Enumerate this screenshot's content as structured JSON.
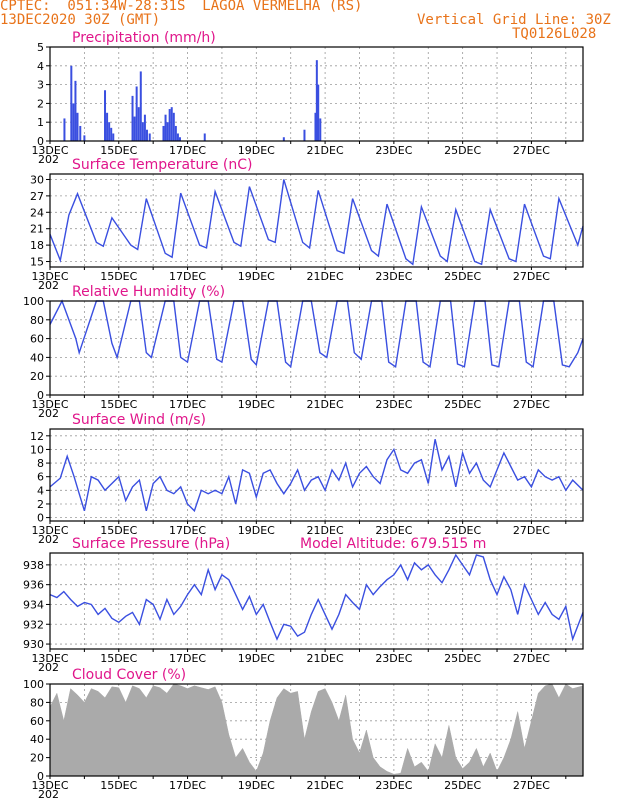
{
  "header": {
    "line1": "CPTEC:  051:34W-28:31S  LAGOA VERMELHA (RS)",
    "line2_left": "13DEC2020 30Z (GMT)",
    "line2_right": "Vertical Grid Line: 30Z",
    "line3_right": "TQ0126L028"
  },
  "colors": {
    "header": "#e8731a",
    "title": "#e0168b",
    "line": "#3a4fe0",
    "cloud": "#aaaaaa"
  },
  "x_tick_labels": [
    "13DEC",
    "15DEC",
    "17DEC",
    "19DEC",
    "21DEC",
    "23DEC",
    "25DEC",
    "27DEC"
  ],
  "x_cut_label": "202",
  "model_altitude": "Model Altitude: 679.515  m",
  "chart_data": [
    {
      "type": "bar",
      "title": "Precipitation  (mm/h)",
      "xlim": [
        0,
        15.5
      ],
      "ylim": [
        0,
        5
      ],
      "yticks": [
        0,
        1,
        2,
        3,
        4,
        5
      ],
      "x": [
        0.42,
        0.62,
        0.68,
        0.74,
        0.8,
        0.88,
        1.0,
        1.6,
        1.66,
        1.72,
        1.78,
        1.84,
        2.4,
        2.46,
        2.52,
        2.58,
        2.64,
        2.7,
        2.76,
        2.82,
        2.9,
        3.3,
        3.36,
        3.42,
        3.48,
        3.54,
        3.6,
        3.66,
        3.72,
        3.78,
        4.5,
        6.8,
        7.4,
        7.72,
        7.76,
        7.8,
        7.86
      ],
      "values": [
        1.2,
        4.0,
        2.0,
        3.2,
        1.5,
        0.8,
        0.3,
        2.7,
        1.5,
        1.0,
        0.7,
        0.4,
        2.4,
        1.3,
        2.9,
        1.8,
        3.7,
        1.0,
        1.4,
        0.6,
        0.4,
        0.8,
        1.4,
        1.0,
        1.7,
        1.8,
        1.5,
        0.8,
        0.4,
        0.2,
        0.4,
        0.2,
        0.6,
        1.5,
        4.3,
        3.0,
        1.2
      ]
    },
    {
      "type": "line",
      "title": "Surface Temperature  (nC)",
      "xlim": [
        0,
        15.5
      ],
      "ylim": [
        14,
        31
      ],
      "yticks": [
        15,
        18,
        21,
        24,
        27,
        30
      ],
      "x": [
        0.0,
        0.3,
        0.55,
        0.8,
        1.35,
        1.55,
        1.8,
        2.35,
        2.55,
        2.8,
        3.35,
        3.55,
        3.8,
        4.35,
        4.55,
        4.8,
        5.35,
        5.55,
        5.8,
        6.35,
        6.55,
        6.8,
        7.35,
        7.55,
        7.8,
        8.35,
        8.55,
        8.8,
        9.35,
        9.55,
        9.8,
        10.35,
        10.55,
        10.8,
        11.35,
        11.55,
        11.8,
        12.35,
        12.55,
        12.8,
        13.35,
        13.55,
        13.8,
        14.35,
        14.55,
        14.8,
        15.35,
        15.5
      ],
      "values": [
        20.0,
        15.2,
        23.5,
        27.4,
        18.5,
        17.8,
        23.0,
        18.0,
        17.2,
        26.5,
        16.5,
        15.8,
        27.5,
        18.0,
        17.5,
        27.8,
        18.5,
        17.8,
        28.7,
        19.0,
        18.5,
        30.0,
        18.5,
        17.5,
        28.0,
        17.0,
        16.5,
        26.5,
        17.0,
        16.0,
        25.5,
        15.5,
        14.5,
        25.0,
        16.0,
        15.0,
        24.5,
        15.0,
        14.5,
        24.5,
        15.5,
        15.0,
        25.5,
        16.0,
        15.5,
        26.5,
        18.0,
        21.5
      ]
    },
    {
      "type": "line",
      "title": "Relative Humidity  (%)",
      "xlim": [
        0,
        15.5
      ],
      "ylim": [
        0,
        100
      ],
      "yticks": [
        0,
        20,
        40,
        60,
        80,
        100
      ],
      "x": [
        0.0,
        0.35,
        0.75,
        0.85,
        1.35,
        1.55,
        1.8,
        1.95,
        2.35,
        2.6,
        2.8,
        2.95,
        3.35,
        3.6,
        3.8,
        4.0,
        4.35,
        4.6,
        4.85,
        5.0,
        5.35,
        5.6,
        5.85,
        6.0,
        6.35,
        6.6,
        6.85,
        7.0,
        7.35,
        7.6,
        7.85,
        8.05,
        8.35,
        8.65,
        8.85,
        9.05,
        9.35,
        9.65,
        9.85,
        10.05,
        10.35,
        10.65,
        10.85,
        11.05,
        11.35,
        11.65,
        11.85,
        12.05,
        12.35,
        12.65,
        12.85,
        13.05,
        13.35,
        13.65,
        13.85,
        14.05,
        14.35,
        14.65,
        14.9,
        15.1,
        15.35,
        15.5
      ],
      "values": [
        75,
        100,
        60,
        45,
        100,
        100,
        55,
        40,
        100,
        100,
        45,
        40,
        100,
        100,
        40,
        35,
        100,
        100,
        38,
        35,
        100,
        100,
        38,
        32,
        100,
        100,
        35,
        30,
        100,
        100,
        45,
        40,
        100,
        100,
        45,
        38,
        100,
        100,
        35,
        30,
        100,
        100,
        35,
        30,
        100,
        100,
        33,
        30,
        100,
        100,
        32,
        30,
        100,
        100,
        35,
        30,
        100,
        100,
        32,
        30,
        45,
        60
      ]
    },
    {
      "type": "line",
      "title": "Surface  Wind  (m/s)",
      "xlim": [
        0,
        15.5
      ],
      "ylim": [
        -0.5,
        13
      ],
      "yticks": [
        0,
        2,
        4,
        6,
        8,
        10,
        12
      ],
      "x": [
        0.0,
        0.3,
        0.5,
        0.7,
        0.85,
        1.0,
        1.2,
        1.4,
        1.6,
        1.8,
        2.0,
        2.2,
        2.4,
        2.6,
        2.8,
        3.0,
        3.2,
        3.4,
        3.6,
        3.8,
        4.0,
        4.2,
        4.4,
        4.6,
        4.8,
        5.0,
        5.2,
        5.4,
        5.6,
        5.8,
        6.0,
        6.2,
        6.4,
        6.6,
        6.8,
        7.0,
        7.2,
        7.4,
        7.6,
        7.8,
        8.0,
        8.2,
        8.4,
        8.6,
        8.8,
        9.0,
        9.2,
        9.4,
        9.6,
        9.8,
        10.0,
        10.2,
        10.4,
        10.6,
        10.8,
        11.0,
        11.2,
        11.4,
        11.6,
        11.8,
        12.0,
        12.2,
        12.4,
        12.6,
        12.8,
        13.0,
        13.2,
        13.4,
        13.6,
        13.8,
        14.0,
        14.2,
        14.4,
        14.6,
        14.8,
        15.0,
        15.2,
        15.5
      ],
      "values": [
        4.5,
        5.8,
        9.0,
        6.0,
        3.5,
        1.0,
        6.0,
        5.5,
        4.0,
        5.0,
        6.0,
        2.5,
        4.5,
        5.5,
        1.0,
        5.0,
        6.0,
        4.0,
        3.5,
        4.5,
        2.0,
        1.0,
        4.0,
        3.5,
        4.0,
        3.5,
        6.0,
        2.0,
        7.0,
        6.5,
        3.0,
        6.5,
        7.0,
        5.0,
        3.5,
        5.0,
        7.0,
        4.0,
        5.5,
        6.0,
        4.0,
        7.0,
        5.5,
        8.0,
        4.5,
        6.5,
        7.5,
        6.0,
        5.0,
        8.5,
        10.0,
        7.0,
        6.5,
        8.0,
        8.5,
        5.0,
        11.5,
        7.0,
        9.0,
        4.5,
        9.5,
        6.5,
        8.0,
        5.5,
        4.5,
        7.0,
        9.5,
        7.5,
        5.5,
        6.0,
        4.5,
        7.0,
        6.0,
        5.5,
        6.0,
        4.0,
        5.5,
        4.0
      ]
    },
    {
      "type": "line",
      "title": "Surface Pressure (hPa)",
      "xlim": [
        0,
        15.5
      ],
      "ylim": [
        929.5,
        939.2
      ],
      "yticks": [
        930,
        932,
        934,
        936,
        938
      ],
      "x": [
        0.0,
        0.2,
        0.4,
        0.6,
        0.8,
        1.0,
        1.2,
        1.4,
        1.6,
        1.8,
        2.0,
        2.2,
        2.4,
        2.6,
        2.8,
        3.0,
        3.2,
        3.4,
        3.6,
        3.8,
        4.0,
        4.2,
        4.4,
        4.6,
        4.8,
        5.0,
        5.2,
        5.4,
        5.6,
        5.8,
        6.0,
        6.2,
        6.4,
        6.6,
        6.8,
        7.0,
        7.2,
        7.4,
        7.6,
        7.8,
        8.0,
        8.2,
        8.4,
        8.6,
        8.8,
        9.0,
        9.2,
        9.4,
        9.6,
        9.8,
        10.0,
        10.2,
        10.4,
        10.6,
        10.8,
        11.0,
        11.2,
        11.4,
        11.6,
        11.8,
        12.0,
        12.2,
        12.4,
        12.6,
        12.8,
        13.0,
        13.2,
        13.4,
        13.6,
        13.8,
        14.0,
        14.2,
        14.4,
        14.6,
        14.8,
        15.0,
        15.2,
        15.5
      ],
      "values": [
        935.0,
        934.7,
        935.3,
        934.5,
        933.8,
        934.2,
        934.0,
        933.0,
        933.6,
        932.6,
        932.2,
        932.8,
        933.2,
        932.0,
        934.5,
        934.0,
        932.5,
        934.5,
        933.0,
        933.8,
        935.0,
        936.0,
        935.0,
        937.5,
        935.5,
        937.0,
        936.5,
        935.0,
        933.5,
        934.8,
        933.0,
        934.0,
        932.2,
        930.5,
        932.0,
        931.8,
        930.8,
        931.2,
        933.0,
        934.5,
        933.0,
        931.5,
        933.0,
        935.0,
        934.2,
        933.5,
        936.0,
        935.0,
        935.8,
        936.5,
        937.0,
        938.0,
        936.5,
        938.2,
        937.5,
        938.0,
        937.0,
        936.2,
        937.5,
        939.0,
        938.0,
        937.0,
        939.0,
        938.8,
        936.5,
        935.0,
        936.8,
        935.5,
        933.0,
        936.0,
        934.5,
        933.0,
        934.2,
        933.0,
        932.5,
        933.8,
        930.5,
        933.2
      ]
    },
    {
      "type": "area",
      "title": "Cloud  Cover  (%)",
      "xlim": [
        0,
        15.5
      ],
      "ylim": [
        0,
        100
      ],
      "yticks": [
        0,
        20,
        40,
        60,
        80,
        100
      ],
      "x": [
        0.0,
        0.2,
        0.4,
        0.6,
        0.8,
        1.0,
        1.2,
        1.4,
        1.6,
        1.8,
        2.0,
        2.2,
        2.4,
        2.6,
        2.8,
        3.0,
        3.2,
        3.4,
        3.6,
        3.8,
        4.0,
        4.2,
        4.4,
        4.6,
        4.8,
        5.0,
        5.2,
        5.4,
        5.6,
        5.8,
        6.0,
        6.2,
        6.4,
        6.6,
        6.8,
        7.0,
        7.2,
        7.4,
        7.6,
        7.8,
        8.0,
        8.2,
        8.4,
        8.6,
        8.8,
        9.0,
        9.2,
        9.4,
        9.6,
        9.8,
        10.0,
        10.2,
        10.4,
        10.6,
        10.8,
        11.0,
        11.2,
        11.4,
        11.6,
        11.8,
        12.0,
        12.2,
        12.4,
        12.6,
        12.8,
        13.0,
        13.2,
        13.4,
        13.6,
        13.8,
        14.0,
        14.2,
        14.4,
        14.6,
        14.8,
        15.0,
        15.2,
        15.5
      ],
      "values": [
        75,
        90,
        60,
        95,
        88,
        80,
        95,
        92,
        85,
        97,
        96,
        80,
        98,
        95,
        85,
        98,
        96,
        90,
        100,
        98,
        95,
        98,
        96,
        94,
        97,
        80,
        45,
        20,
        30,
        15,
        5,
        25,
        60,
        85,
        95,
        90,
        92,
        40,
        70,
        92,
        95,
        80,
        60,
        88,
        40,
        25,
        50,
        20,
        10,
        5,
        2,
        3,
        30,
        10,
        15,
        5,
        35,
        20,
        55,
        20,
        8,
        15,
        30,
        10,
        25,
        5,
        20,
        40,
        70,
        30,
        60,
        90,
        98,
        100,
        85,
        100,
        95,
        98
      ]
    }
  ]
}
